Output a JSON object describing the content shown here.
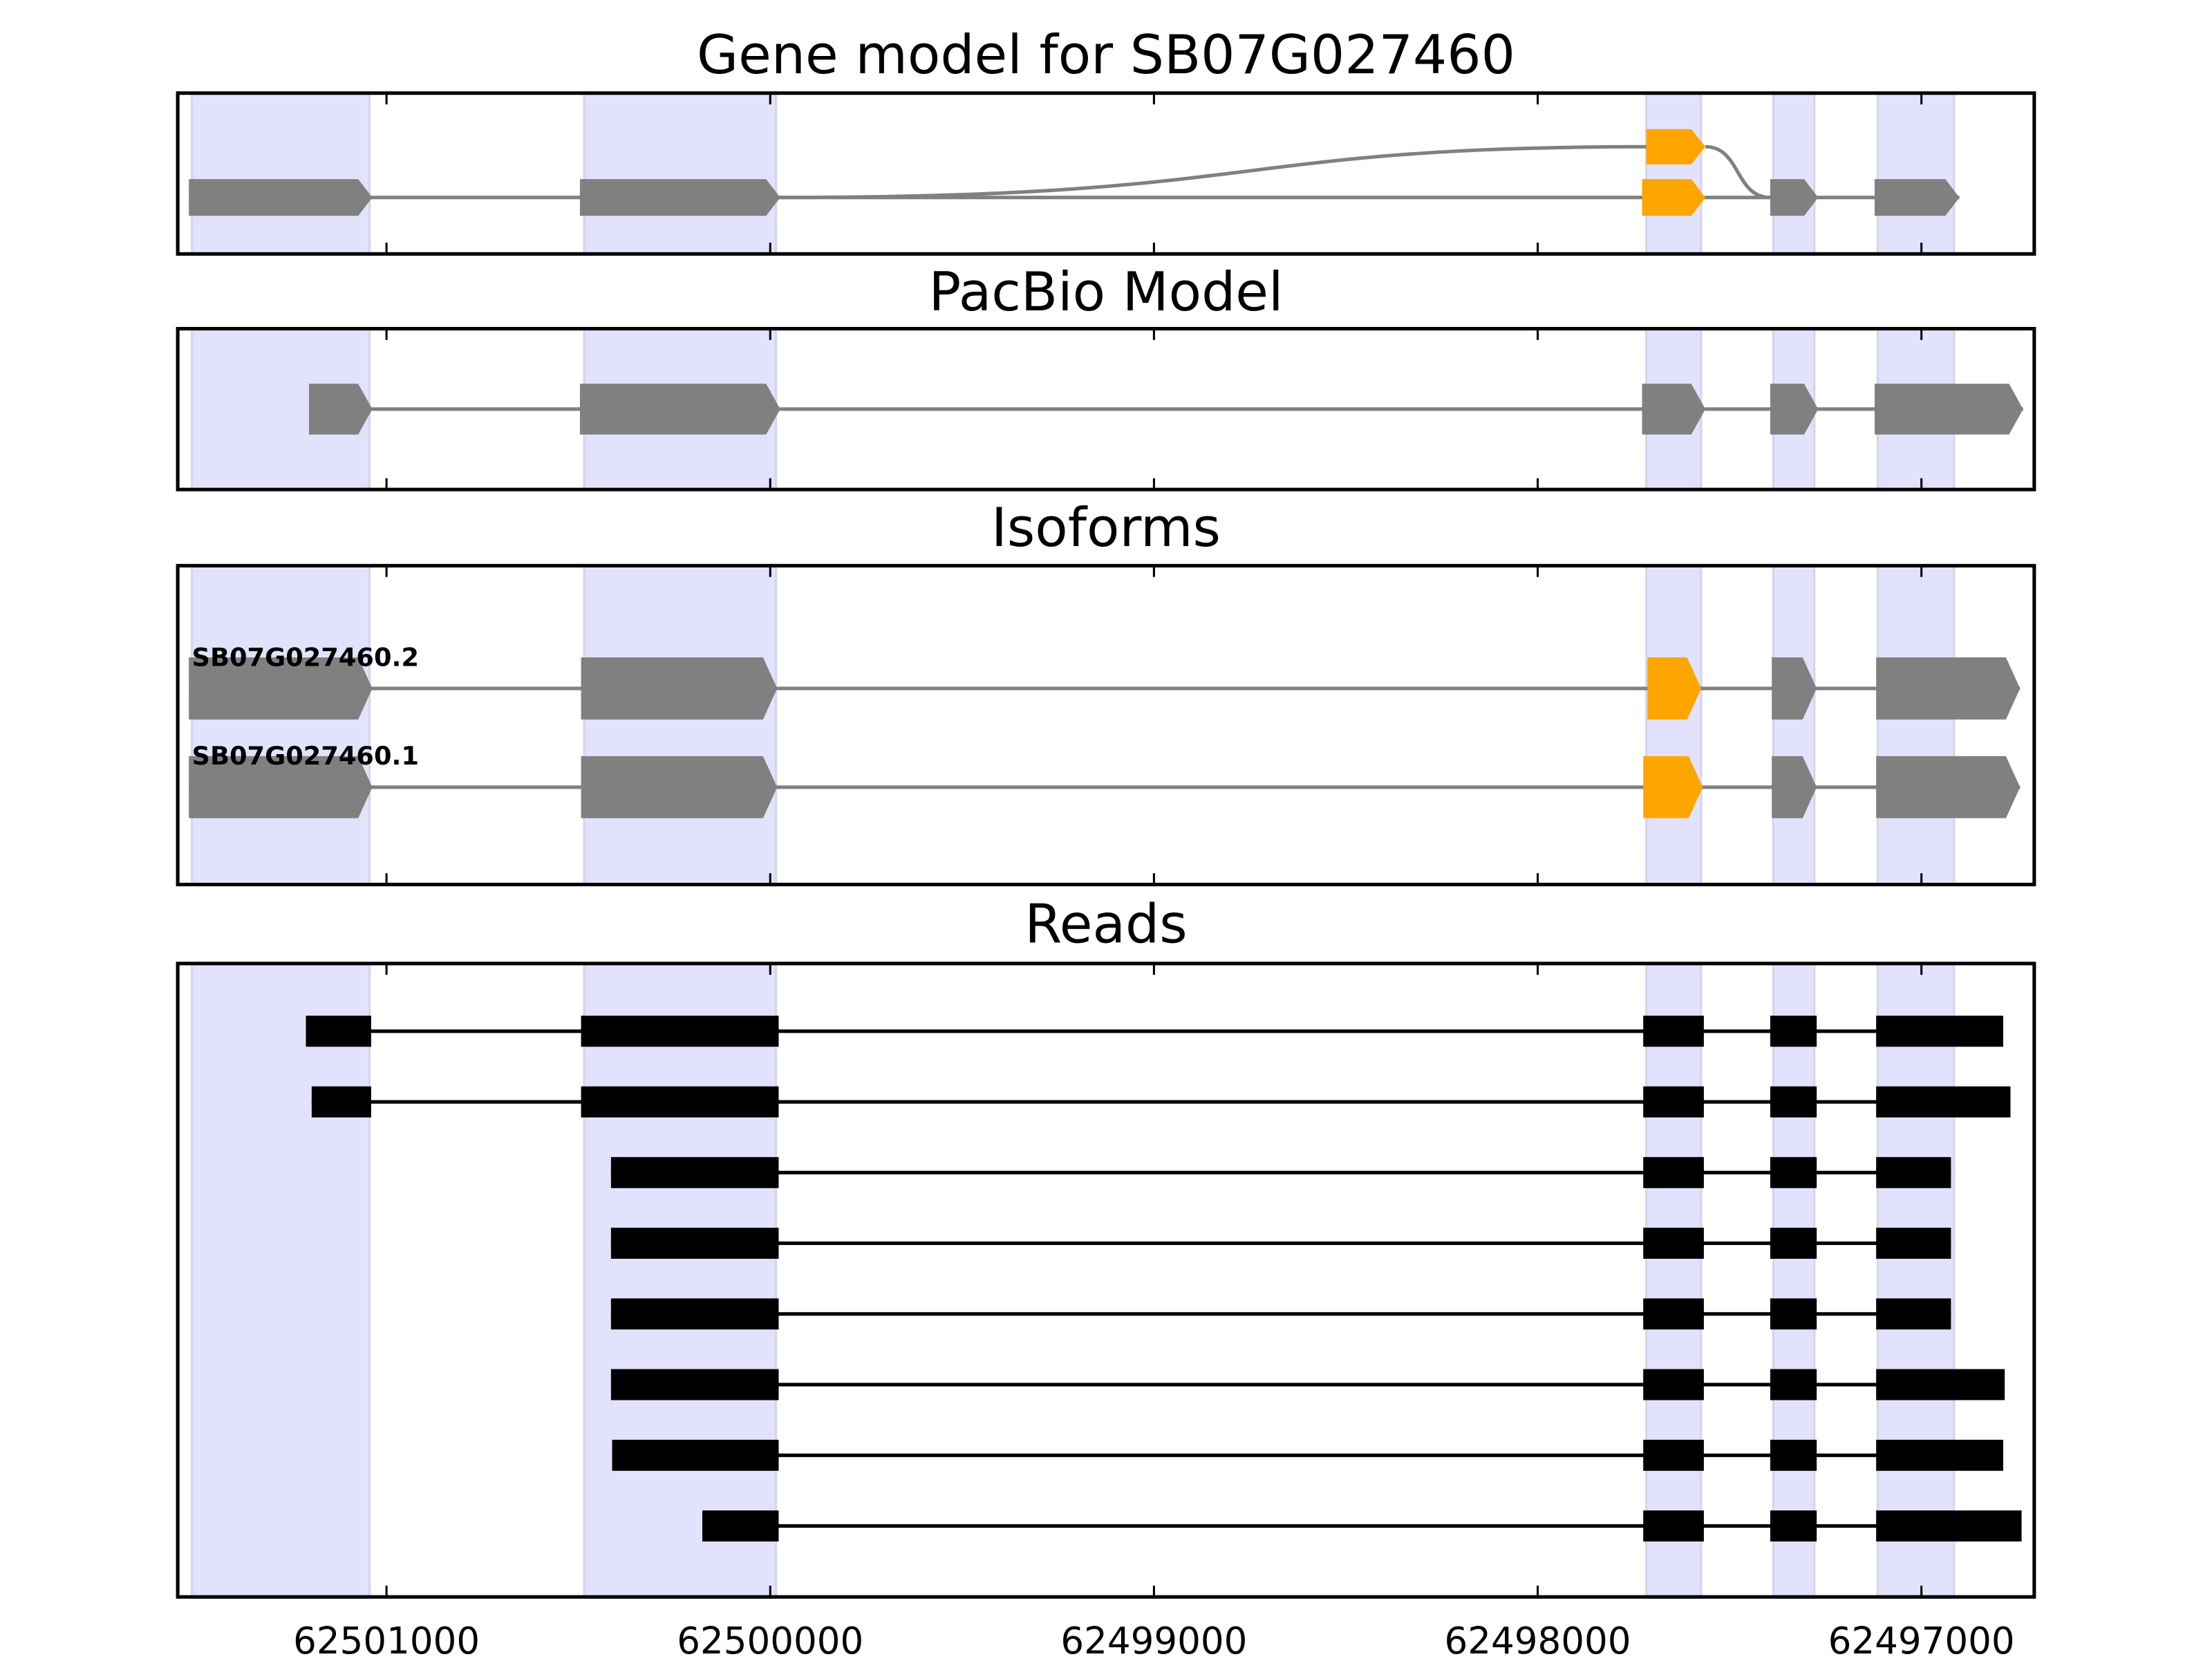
{
  "axis": {
    "domain": [
      62501544,
      62496706
    ],
    "ticks": [
      {
        "value": 62501000,
        "label": "62501000"
      },
      {
        "value": 62500000,
        "label": "62500000"
      },
      {
        "value": 62499000,
        "label": "62499000"
      },
      {
        "value": 62498000,
        "label": "62498000"
      },
      {
        "value": 62497000,
        "label": "62497000"
      }
    ]
  },
  "colors": {
    "exon": "#808080",
    "alt_exon": "#FFA500",
    "read": "#000000",
    "shade": "#E2E2FC",
    "intron": "#808080"
  },
  "shaded_regions": [
    [
      62501507,
      62501044
    ],
    [
      62500485,
      62499985
    ],
    [
      62497717,
      62497574
    ],
    [
      62497386,
      62497279
    ],
    [
      62497114,
      62496915
    ]
  ],
  "panels": {
    "gene_model": {
      "title": "Gene model for SB07G027460",
      "main_exons": [
        [
          62501515,
          62501037
        ],
        [
          62500496,
          62499974
        ],
        [
          62497728,
          62497563,
          "alt"
        ],
        [
          62497394,
          62497269
        ],
        [
          62497122,
          62496901
        ]
      ],
      "alt_exon": [
        62497717,
        62497563
      ]
    },
    "pacbio": {
      "title": "PacBio Model",
      "exons": [
        [
          62501202,
          62501037
        ],
        [
          62500496,
          62499974
        ],
        [
          62497728,
          62497563
        ],
        [
          62497394,
          62497269
        ],
        [
          62497122,
          62496735
        ]
      ]
    },
    "isoforms": {
      "title": "Isoforms",
      "items": [
        {
          "name": "SB07G027460.2",
          "exons": [
            [
              62501515,
              62501037
            ],
            [
              62500493,
              62499982
            ],
            [
              62497714,
              62497574,
              "alt"
            ],
            [
              62497390,
              62497273
            ],
            [
              62497118,
              62496743
            ]
          ]
        },
        {
          "name": "SB07G027460.1",
          "exons": [
            [
              62501515,
              62501037
            ],
            [
              62500493,
              62499982
            ],
            [
              62497725,
              62497570,
              "alt"
            ],
            [
              62497390,
              62497273
            ],
            [
              62497118,
              62496743
            ]
          ]
        }
      ]
    },
    "reads": {
      "title": "Reads",
      "items": [
        [
          [
            62501210,
            62501040
          ],
          [
            62500493,
            62499978
          ],
          [
            62497725,
            62497567
          ],
          [
            62497394,
            62497273
          ],
          [
            62497118,
            62496787
          ]
        ],
        [
          [
            62501195,
            62501040
          ],
          [
            62500493,
            62499978
          ],
          [
            62497725,
            62497567
          ],
          [
            62497394,
            62497273
          ],
          [
            62497118,
            62496768
          ]
        ],
        [
          [
            62500415,
            62499978
          ],
          [
            62497725,
            62497567
          ],
          [
            62497394,
            62497273
          ],
          [
            62497118,
            62496923
          ]
        ],
        [
          [
            62500415,
            62499978
          ],
          [
            62497725,
            62497567
          ],
          [
            62497394,
            62497273
          ],
          [
            62497118,
            62496923
          ]
        ],
        [
          [
            62500415,
            62499978
          ],
          [
            62497725,
            62497567
          ],
          [
            62497394,
            62497273
          ],
          [
            62497118,
            62496923
          ]
        ],
        [
          [
            62500415,
            62499978
          ],
          [
            62497725,
            62497567
          ],
          [
            62497394,
            62497273
          ],
          [
            62497118,
            62496783
          ]
        ],
        [
          [
            62500412,
            62499978
          ],
          [
            62497725,
            62497567
          ],
          [
            62497394,
            62497273
          ],
          [
            62497118,
            62496787
          ]
        ],
        [
          [
            62500177,
            62499978
          ],
          [
            62497725,
            62497567
          ],
          [
            62497394,
            62497273
          ],
          [
            62497118,
            62496739
          ]
        ]
      ]
    }
  }
}
